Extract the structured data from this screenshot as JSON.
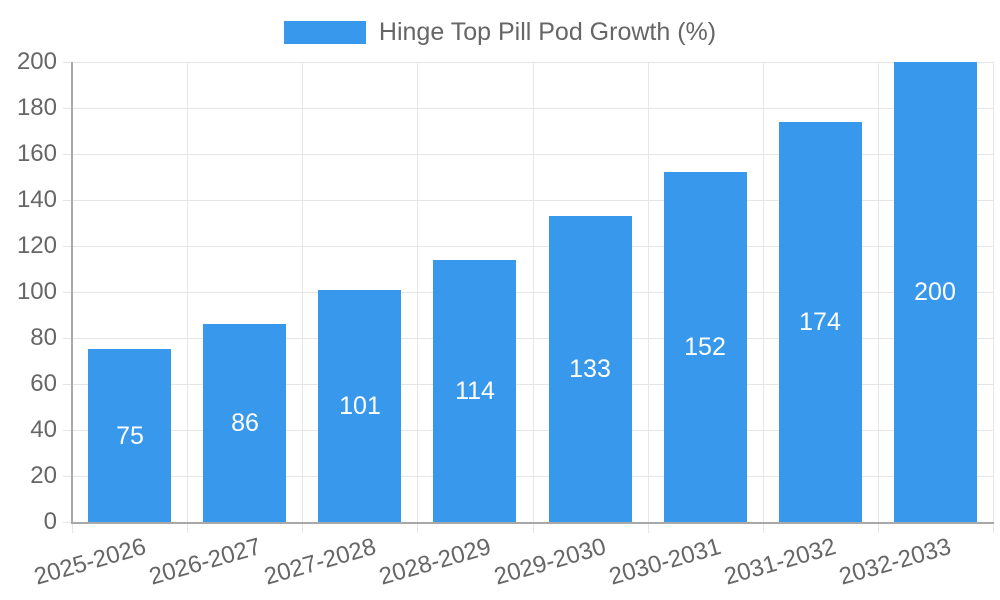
{
  "chart_data": {
    "type": "bar",
    "title": "",
    "legend": "Hinge Top Pill Pod Growth (%)",
    "legend_position": "top",
    "categories": [
      "2025-2026",
      "2026-2027",
      "2027-2028",
      "2028-2029",
      "2029-2030",
      "2030-2031",
      "2031-2032",
      "2032-2033"
    ],
    "values": [
      75,
      86,
      101,
      114,
      133,
      152,
      174,
      200
    ],
    "xlabel": "",
    "ylabel": "",
    "ylim": [
      0,
      200
    ],
    "ytick_step": 20,
    "grid": true,
    "value_label_position": "center",
    "colors": {
      "bar": "#3898EC",
      "grid": "#E6E6E6",
      "axis": "#A8A8A8",
      "tick_text": "#666666",
      "legend_text": "#666666",
      "value_text": "#FFFFFF",
      "background": "#FFFFFF"
    }
  }
}
